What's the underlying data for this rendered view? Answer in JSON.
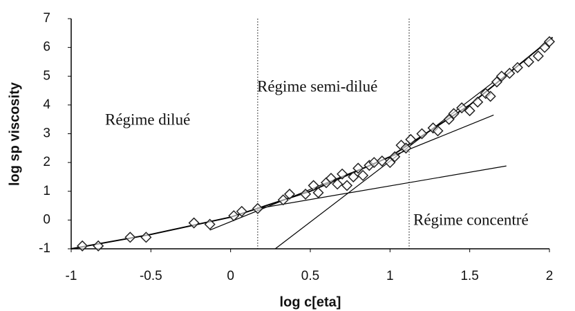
{
  "chart_data": {
    "type": "scatter",
    "x_label": "log c[eta]",
    "y_label": "log sp viscosity",
    "xlim": [
      -1,
      2
    ],
    "ylim": [
      -1,
      7
    ],
    "xticks": [
      -1,
      -0.5,
      0,
      0.5,
      1,
      1.5,
      2
    ],
    "yticks": [
      -1,
      0,
      1,
      2,
      3,
      4,
      5,
      6,
      7
    ],
    "grid": false,
    "color": "#222222",
    "x": [
      -0.93,
      -0.83,
      -0.63,
      -0.53,
      -0.23,
      -0.13,
      0.02,
      0.07,
      0.17,
      0.33,
      0.37,
      0.47,
      0.52,
      0.55,
      0.6,
      0.63,
      0.67,
      0.7,
      0.73,
      0.77,
      0.8,
      0.83,
      0.87,
      0.9,
      0.95,
      1.0,
      1.03,
      1.07,
      1.1,
      1.13,
      1.2,
      1.27,
      1.3,
      1.37,
      1.4,
      1.45,
      1.5,
      1.55,
      1.6,
      1.63,
      1.67,
      1.7,
      1.75,
      1.8,
      1.87,
      1.93,
      1.97,
      2.0
    ],
    "values": [
      -0.9,
      -0.9,
      -0.6,
      -0.6,
      -0.1,
      -0.15,
      0.15,
      0.3,
      0.4,
      0.7,
      0.9,
      0.9,
      1.2,
      0.95,
      1.3,
      1.45,
      1.25,
      1.6,
      1.2,
      1.5,
      1.8,
      1.55,
      1.9,
      2.0,
      2.05,
      2.0,
      2.2,
      2.6,
      2.5,
      2.8,
      3.0,
      3.2,
      3.1,
      3.5,
      3.7,
      3.9,
      3.8,
      4.1,
      4.4,
      4.3,
      4.8,
      5.0,
      5.1,
      5.3,
      5.5,
      5.7,
      6.0,
      6.2
    ],
    "fit_lines": [
      {
        "x": [
          -1,
          -0.5,
          0,
          0.5,
          1,
          1.5,
          2.02
        ],
        "y": [
          -1,
          -0.5,
          0.1,
          1.0,
          2.2,
          4.0,
          6.35
        ]
      },
      {
        "x": [
          -0.13,
          1.65
        ],
        "y": [
          -0.35,
          3.65
        ]
      },
      {
        "x": [
          0.17,
          1.73
        ],
        "y": [
          0.4,
          1.88
        ]
      },
      {
        "x": [
          0.28,
          1.65
        ],
        "y": [
          -1.0,
          4.8
        ]
      }
    ],
    "vlines": [
      0.17,
      1.12
    ],
    "annotations": [
      "Régime dilué",
      "Régime semi-dilué",
      "Régime concentré"
    ]
  }
}
